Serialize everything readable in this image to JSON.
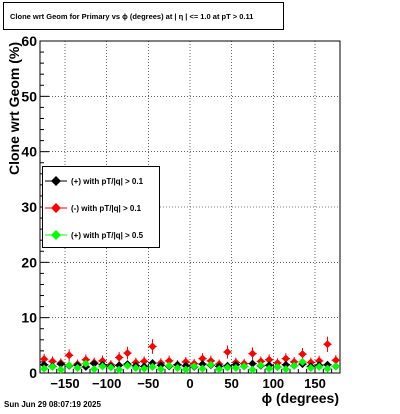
{
  "header": {
    "title": "Clone wrt Geom for Primary vs ϕ (degrees) at | η | <= 1.0 at pT > 0.11"
  },
  "footer": {
    "timestamp": "Sun Jun 29 08:07:19 2025"
  },
  "colors": {
    "series0": "#000000",
    "series1": "#ff0000",
    "series2": "#00ff00"
  },
  "chart_data": {
    "type": "scatter",
    "title": "Clone wrt Geom for Primary vs ϕ (degrees) at | η | <= 1.0 at pT > 0.11",
    "xlabel": "ϕ (degrees)",
    "ylabel": "Clone wrt Geom (%)",
    "xlim": [
      -180,
      180
    ],
    "ylim": [
      0,
      60
    ],
    "x_ticks": [
      "−150",
      "−100",
      "−50",
      "0",
      "50",
      "100",
      "150"
    ],
    "y_ticks": [
      "0",
      "10",
      "20",
      "30",
      "40",
      "50",
      "60"
    ],
    "grid": true,
    "legend_position": "middle-left",
    "x": [
      -175,
      -165,
      -155,
      -145,
      -135,
      -125,
      -115,
      -105,
      -95,
      -85,
      -75,
      -65,
      -55,
      -45,
      -35,
      -25,
      -15,
      -5,
      5,
      15,
      25,
      35,
      45,
      55,
      65,
      75,
      85,
      95,
      105,
      115,
      125,
      135,
      145,
      155,
      165,
      175
    ],
    "series": [
      {
        "name": "(+) with pT/|q| > 0.1",
        "values": [
          1.5,
          1.2,
          1.6,
          1.3,
          1.4,
          1.1,
          1.7,
          1.5,
          1.2,
          1.4,
          1.6,
          1.3,
          1.2,
          1.8,
          1.4,
          1.2,
          1.5,
          1.3,
          1.1,
          1.6,
          1.4,
          1.2,
          1.3,
          1.5,
          1.2,
          1.7,
          1.3,
          1.4,
          1.1,
          1.5,
          1.3,
          1.6,
          1.2,
          1.4,
          1.5,
          1.2
        ]
      },
      {
        "name": "(-) with pT/|q| > 0.1",
        "values": [
          2.5,
          2.1,
          1.8,
          3.2,
          1.6,
          2.4,
          1.9,
          2.2,
          1.5,
          2.8,
          3.6,
          1.9,
          2.1,
          4.8,
          1.8,
          2.2,
          1.5,
          2.0,
          1.7,
          2.6,
          2.2,
          1.6,
          3.8,
          1.9,
          1.7,
          3.5,
          2.1,
          2.4,
          1.8,
          2.6,
          2.0,
          3.4,
          1.9,
          2.2,
          5.2,
          2.3
        ]
      },
      {
        "name": "(+) with pT/|q| > 0.5",
        "values": [
          0.8,
          1.1,
          0.6,
          1.4,
          0.9,
          1.7,
          0.7,
          1.2,
          1.0,
          0.6,
          1.3,
          0.9,
          0.8,
          1.1,
          0.7,
          1.3,
          0.9,
          0.6,
          1.2,
          0.8,
          1.5,
          0.7,
          1.0,
          0.9,
          1.2,
          0.6,
          1.4,
          0.8,
          1.1,
          0.7,
          1.3,
          2.0,
          0.9,
          1.1,
          0.8,
          1.2
        ]
      }
    ]
  }
}
